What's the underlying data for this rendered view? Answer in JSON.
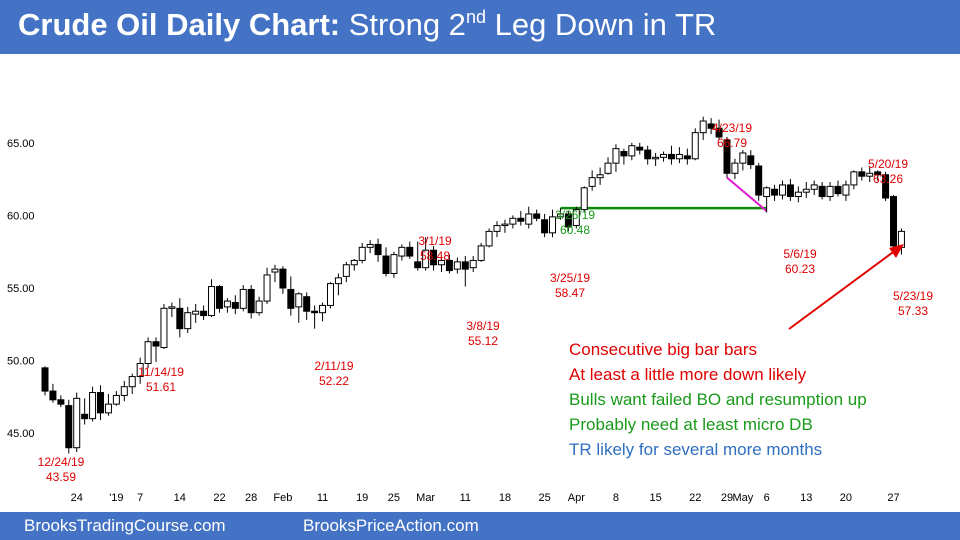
{
  "header": {
    "title_bold": "Crude Oil Daily Chart:",
    "title_pre": "Strong 2",
    "title_sup": "nd",
    "title_post": "Leg Down in TR"
  },
  "footer": {
    "left": "BrooksTradingCourse.com",
    "right": "BrooksPriceAction.com"
  },
  "annotations": [
    {
      "text": "Consecutive big bar bars",
      "color": "#e00000"
    },
    {
      "text": "At least a little more down likely",
      "color": "#e00000"
    },
    {
      "text": "Bulls want failed BO and resumption up",
      "color": "#1a9a1a"
    },
    {
      "text": "Probably need at least micro DB",
      "color": "#1a9a1a"
    },
    {
      "text": "TR likely for several more months",
      "color": "#2f6fc0"
    }
  ],
  "colors": {
    "red": "#e00000",
    "green": "#1a9a1a",
    "blue": "#2f6fc0",
    "magenta": "#e01ad0",
    "header": "#4472c4",
    "line_green": "#0a8a0a"
  },
  "chart_data": {
    "type": "candlestick",
    "title": "Crude Oil Daily Chart: Strong 2nd Leg Down in TR",
    "ylim": [
      41.5,
      68.5
    ],
    "y_ticks": [
      {
        "value": 45,
        "label": "45.00"
      },
      {
        "value": 50,
        "label": "50.00"
      },
      {
        "value": 55,
        "label": "55.00"
      },
      {
        "value": 60,
        "label": "60.00"
      },
      {
        "value": 65,
        "label": "65.00"
      }
    ],
    "x_ticks": [
      {
        "index": 4,
        "label": "24"
      },
      {
        "index": 9,
        "label": "'19"
      },
      {
        "index": 12,
        "label": "7"
      },
      {
        "index": 17,
        "label": "14"
      },
      {
        "index": 22,
        "label": "22"
      },
      {
        "index": 26,
        "label": "28"
      },
      {
        "index": 30,
        "label": "Feb"
      },
      {
        "index": 35,
        "label": "11"
      },
      {
        "index": 40,
        "label": "19"
      },
      {
        "index": 44,
        "label": "25"
      },
      {
        "index": 48,
        "label": "Mar"
      },
      {
        "index": 53,
        "label": "11"
      },
      {
        "index": 58,
        "label": "18"
      },
      {
        "index": 63,
        "label": "25"
      },
      {
        "index": 67,
        "label": "Apr"
      },
      {
        "index": 72,
        "label": "8"
      },
      {
        "index": 77,
        "label": "15"
      },
      {
        "index": 82,
        "label": "22"
      },
      {
        "index": 86,
        "label": "29"
      },
      {
        "index": 88,
        "label": "May"
      },
      {
        "index": 91,
        "label": "6"
      },
      {
        "index": 96,
        "label": "13"
      },
      {
        "index": 101,
        "label": "20"
      },
      {
        "index": 107,
        "label": "27"
      }
    ],
    "candles": [
      [
        49.5,
        49.6,
        47.6,
        47.9
      ],
      [
        47.9,
        48.4,
        47.1,
        47.3
      ],
      [
        47.3,
        47.6,
        46.8,
        47.0
      ],
      [
        46.9,
        47.3,
        43.6,
        44.0
      ],
      [
        44.0,
        47.8,
        43.7,
        47.4
      ],
      [
        46.3,
        47.4,
        45.6,
        46.0
      ],
      [
        46.0,
        48.2,
        45.8,
        47.8
      ],
      [
        47.8,
        48.3,
        45.9,
        46.4
      ],
      [
        46.4,
        47.7,
        46.2,
        47.0
      ],
      [
        47.0,
        47.9,
        46.9,
        47.6
      ],
      [
        47.6,
        48.6,
        47.2,
        48.2
      ],
      [
        48.2,
        49.1,
        47.7,
        48.9
      ],
      [
        48.9,
        50.2,
        48.4,
        49.8
      ],
      [
        49.8,
        51.6,
        49.5,
        51.3
      ],
      [
        51.3,
        51.6,
        49.9,
        51.0
      ],
      [
        50.9,
        53.9,
        50.8,
        53.6
      ],
      [
        53.6,
        54.0,
        53.0,
        53.7
      ],
      [
        53.6,
        54.3,
        51.6,
        52.2
      ],
      [
        52.2,
        53.7,
        51.9,
        53.3
      ],
      [
        53.2,
        53.9,
        52.6,
        53.4
      ],
      [
        53.4,
        53.8,
        52.8,
        53.1
      ],
      [
        53.1,
        55.6,
        53.0,
        55.1
      ],
      [
        55.1,
        55.2,
        53.3,
        53.6
      ],
      [
        53.7,
        54.3,
        53.3,
        54.1
      ],
      [
        54.0,
        54.5,
        53.2,
        53.6
      ],
      [
        53.6,
        55.2,
        53.4,
        54.9
      ],
      [
        54.9,
        55.2,
        52.9,
        53.3
      ],
      [
        53.3,
        54.4,
        53.1,
        54.1
      ],
      [
        54.1,
        56.4,
        53.9,
        55.9
      ],
      [
        56.1,
        56.6,
        55.4,
        56.3
      ],
      [
        56.3,
        56.5,
        54.6,
        55.0
      ],
      [
        54.9,
        55.8,
        53.1,
        53.6
      ],
      [
        53.7,
        54.7,
        52.6,
        54.6
      ],
      [
        54.4,
        54.7,
        52.8,
        53.4
      ],
      [
        53.4,
        53.8,
        52.2,
        53.3
      ],
      [
        53.3,
        54.0,
        52.7,
        53.8
      ],
      [
        53.8,
        55.4,
        53.6,
        55.3
      ],
      [
        55.3,
        56.0,
        54.5,
        55.7
      ],
      [
        55.8,
        56.8,
        55.4,
        56.6
      ],
      [
        56.6,
        57.0,
        56.2,
        56.9
      ],
      [
        56.9,
        58.1,
        56.7,
        57.8
      ],
      [
        57.8,
        58.3,
        57.4,
        58.0
      ],
      [
        58.0,
        58.4,
        56.8,
        57.3
      ],
      [
        57.2,
        57.8,
        55.8,
        56.0
      ],
      [
        56.0,
        57.5,
        55.7,
        57.3
      ],
      [
        57.2,
        58.0,
        56.9,
        57.8
      ],
      [
        57.8,
        58.2,
        57.0,
        57.2
      ],
      [
        56.8,
        58.2,
        56.2,
        56.4
      ],
      [
        56.4,
        58.5,
        56.2,
        57.6
      ],
      [
        57.6,
        57.9,
        56.2,
        56.6
      ],
      [
        56.6,
        57.1,
        56.1,
        56.9
      ],
      [
        56.9,
        57.3,
        56.0,
        56.2
      ],
      [
        56.3,
        57.1,
        56.0,
        56.8
      ],
      [
        56.8,
        57.2,
        55.1,
        56.3
      ],
      [
        56.4,
        57.2,
        56.1,
        56.9
      ],
      [
        56.9,
        58.1,
        56.8,
        57.9
      ],
      [
        57.9,
        59.1,
        57.8,
        58.9
      ],
      [
        58.9,
        59.6,
        58.5,
        59.3
      ],
      [
        59.3,
        59.7,
        58.8,
        59.4
      ],
      [
        59.4,
        60.0,
        59.1,
        59.8
      ],
      [
        59.8,
        60.3,
        59.3,
        59.6
      ],
      [
        59.4,
        60.6,
        59.1,
        60.1
      ],
      [
        60.1,
        60.4,
        59.6,
        59.8
      ],
      [
        59.7,
        60.1,
        58.5,
        58.8
      ],
      [
        58.8,
        60.4,
        58.5,
        59.9
      ],
      [
        59.9,
        60.5,
        59.7,
        60.1
      ],
      [
        60.1,
        60.3,
        58.9,
        59.2
      ],
      [
        59.3,
        60.6,
        59.1,
        60.4
      ],
      [
        60.4,
        62.0,
        60.2,
        61.9
      ],
      [
        62.0,
        63.1,
        61.7,
        62.6
      ],
      [
        62.6,
        63.3,
        62.1,
        62.8
      ],
      [
        62.9,
        64.0,
        62.8,
        63.6
      ],
      [
        63.6,
        64.9,
        63.0,
        64.6
      ],
      [
        64.4,
        64.6,
        63.5,
        64.1
      ],
      [
        64.1,
        65.0,
        63.8,
        64.8
      ],
      [
        64.7,
        65.0,
        64.2,
        64.5
      ],
      [
        64.5,
        64.8,
        63.5,
        63.9
      ],
      [
        63.9,
        64.3,
        63.4,
        64.0
      ],
      [
        64.0,
        64.4,
        63.7,
        64.2
      ],
      [
        64.2,
        64.8,
        63.5,
        63.9
      ],
      [
        63.9,
        64.7,
        63.6,
        64.2
      ],
      [
        64.1,
        64.6,
        63.5,
        63.9
      ],
      [
        63.9,
        66.0,
        63.8,
        65.7
      ],
      [
        65.7,
        66.8,
        65.2,
        66.5
      ],
      [
        66.3,
        66.7,
        65.6,
        66.0
      ],
      [
        66.0,
        66.6,
        65.2,
        65.4
      ],
      [
        65.2,
        65.4,
        62.6,
        62.9
      ],
      [
        62.9,
        63.9,
        62.5,
        63.6
      ],
      [
        63.6,
        64.5,
        63.1,
        64.3
      ],
      [
        64.1,
        64.5,
        63.2,
        63.5
      ],
      [
        63.4,
        63.6,
        61.0,
        61.4
      ],
      [
        61.3,
        62.0,
        60.2,
        61.9
      ],
      [
        61.8,
        62.1,
        61.0,
        61.4
      ],
      [
        61.4,
        62.4,
        61.1,
        62.1
      ],
      [
        62.1,
        62.5,
        61.0,
        61.3
      ],
      [
        61.3,
        62.0,
        60.9,
        61.6
      ],
      [
        61.6,
        62.3,
        61.2,
        61.8
      ],
      [
        61.8,
        62.4,
        61.4,
        62.1
      ],
      [
        62.0,
        62.3,
        61.1,
        61.3
      ],
      [
        61.3,
        62.3,
        61.0,
        62.0
      ],
      [
        62.0,
        62.4,
        61.3,
        61.5
      ],
      [
        61.4,
        62.4,
        61.0,
        62.1
      ],
      [
        62.1,
        63.1,
        61.8,
        63.0
      ],
      [
        63.0,
        63.3,
        62.4,
        62.7
      ],
      [
        62.7,
        63.3,
        62.3,
        62.9
      ],
      [
        63.0,
        63.1,
        62.4,
        62.8
      ],
      [
        62.8,
        63.0,
        61.0,
        61.2
      ],
      [
        61.3,
        61.4,
        57.4,
        57.9
      ],
      [
        57.8,
        59.1,
        57.3,
        58.9
      ]
    ],
    "price_labels": [
      {
        "text": "12/24/19",
        "price": 43.59,
        "color": "#e00000"
      },
      {
        "text": "11/14/19",
        "price": 51.61,
        "color": "#e00000"
      },
      {
        "text": "2/11/19",
        "price": 52.22,
        "color": "#e00000"
      },
      {
        "text": "3/1/19",
        "price": 58.48,
        "color": "#e00000"
      },
      {
        "text": "3/8/19",
        "price": 55.12,
        "color": "#e00000"
      },
      {
        "text": "3/25/19",
        "price": 58.47,
        "color": "#e00000"
      },
      {
        "text": "3/26/19",
        "price": 60.48,
        "color": "#1a9a1a"
      },
      {
        "text": "4/23/19",
        "price": 66.79,
        "color": "#e00000"
      },
      {
        "text": "5/6/19",
        "price": 60.23,
        "color": "#e00000"
      },
      {
        "text": "5/20/19",
        "price": 63.26,
        "color": "#e00000"
      },
      {
        "text": "5/23/19",
        "price": 57.33,
        "color": "#e00000"
      }
    ]
  }
}
